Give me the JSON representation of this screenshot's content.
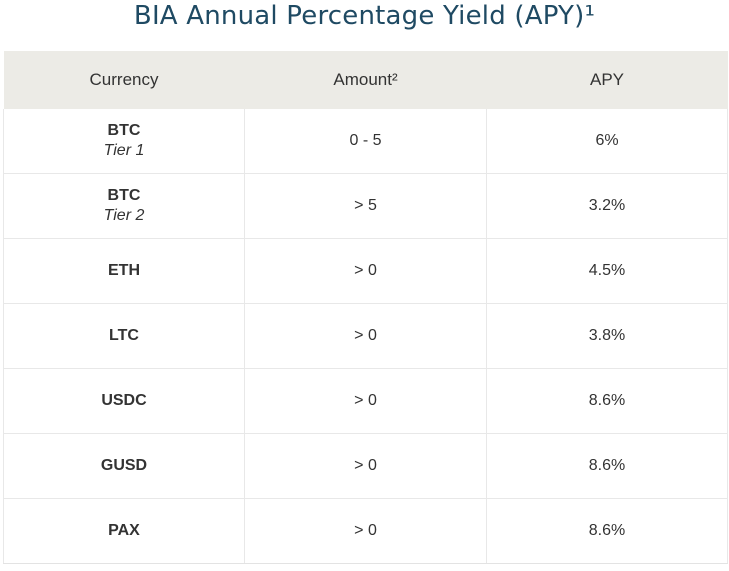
{
  "title": "BIA Annual Percentage Yield (APY)¹",
  "table": {
    "headers": {
      "currency": "Currency",
      "amount": "Amount²",
      "apy": "APY"
    },
    "rows": [
      {
        "currency": "BTC",
        "tier": "Tier 1",
        "amount": "0 - 5",
        "apy": "6%"
      },
      {
        "currency": "BTC",
        "tier": "Tier 2",
        "amount": "> 5",
        "apy": "3.2%"
      },
      {
        "currency": "ETH",
        "tier": "",
        "amount": "> 0",
        "apy": "4.5%"
      },
      {
        "currency": "LTC",
        "tier": "",
        "amount": "> 0",
        "apy": "3.8%"
      },
      {
        "currency": "USDC",
        "tier": "",
        "amount": "> 0",
        "apy": "8.6%"
      },
      {
        "currency": "GUSD",
        "tier": "",
        "amount": "> 0",
        "apy": "8.6%"
      },
      {
        "currency": "PAX",
        "tier": "",
        "amount": "> 0",
        "apy": "8.6%"
      }
    ]
  }
}
